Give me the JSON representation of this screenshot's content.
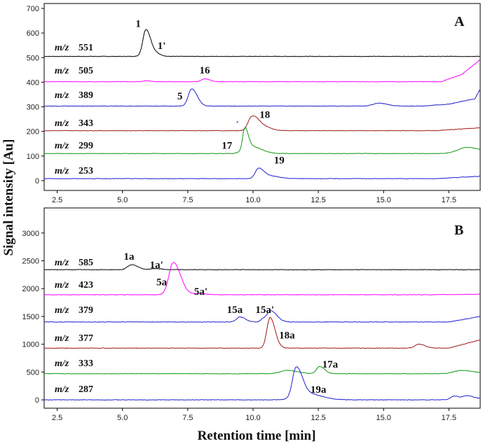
{
  "chart_data": {
    "type": "line",
    "xlabel": "Retention time  [min]",
    "ylabel": "Signal intensity  [Au]",
    "xlim": [
      2.0,
      18.7
    ],
    "x_ticks": [
      "2.5",
      "5.0",
      "7.5",
      "10.0",
      "12.5",
      "15.0",
      "17.5"
    ],
    "panels": [
      {
        "label": "A",
        "ylim": [
          -40,
          720
        ],
        "y_ticks": [
          "0",
          "100",
          "200",
          "300",
          "400",
          "500",
          "600",
          "700"
        ],
        "y_tick_values": [
          0,
          100,
          200,
          300,
          400,
          500,
          600,
          700
        ],
        "traces": [
          {
            "prefix": "m/z",
            "mass": "551",
            "color": "#000000",
            "baseline": 505,
            "drift": [
              [
                12,
                0
              ],
              [
                18.7,
                0
              ]
            ],
            "peaks": [
              [
                5.9,
                110,
                0.12
              ],
              [
                6.35,
                8,
                0.1
              ]
            ]
          },
          {
            "prefix": "m/z",
            "mass": "505",
            "color": "#ff00ff",
            "baseline": 402,
            "drift": [
              [
                17.2,
                0
              ],
              [
                18.0,
                30
              ],
              [
                18.7,
                90
              ]
            ],
            "peaks": [
              [
                8.15,
                12,
                0.12
              ],
              [
                5.9,
                4,
                0.1
              ]
            ]
          },
          {
            "prefix": "m/z",
            "mass": "389",
            "color": "#1f1fc8",
            "baseline": 303,
            "drift": [
              [
                16.5,
                0
              ],
              [
                17.5,
                8
              ],
              [
                18.5,
                30
              ],
              [
                18.7,
                70
              ]
            ],
            "peaks": [
              [
                7.65,
                70,
                0.13
              ],
              [
                14.8,
                12,
                0.2
              ]
            ]
          },
          {
            "prefix": "m/z",
            "mass": "343",
            "color": "#a01818",
            "baseline": 203,
            "drift": [
              [
                17.0,
                0
              ],
              [
                18.7,
                12
              ]
            ],
            "peaks": [
              [
                9.95,
                55,
                0.14
              ],
              [
                10.3,
                20,
                0.2
              ]
            ]
          },
          {
            "prefix": "m/z",
            "mass": "299",
            "color": "#119911",
            "baseline": 110,
            "drift": [
              [
                17.0,
                0
              ],
              [
                18.7,
                0
              ]
            ],
            "peaks": [
              [
                9.68,
                85,
                0.08
              ],
              [
                9.9,
                30,
                0.25
              ],
              [
                18.2,
                25,
                0.35
              ]
            ]
          },
          {
            "prefix": "m/z",
            "mass": "253",
            "color": "#2020d0",
            "baseline": 8,
            "drift": [
              [
                17.0,
                0
              ],
              [
                18.7,
                10
              ]
            ],
            "peaks": [
              [
                10.2,
                38,
                0.12
              ],
              [
                10.55,
                12,
                0.25
              ]
            ]
          }
        ],
        "peak_labels": [
          {
            "text": "1",
            "x": 5.6,
            "y": 625
          },
          {
            "text": "1'",
            "x": 6.5,
            "y": 535
          },
          {
            "text": "16",
            "x": 8.15,
            "y": 435
          },
          {
            "text": "5",
            "x": 7.2,
            "y": 330
          },
          {
            "text": "18",
            "x": 10.45,
            "y": 255
          },
          {
            "text": "17",
            "x": 9.0,
            "y": 130
          },
          {
            "text": "19",
            "x": 11.0,
            "y": 70
          }
        ]
      },
      {
        "label": "B",
        "ylim": [
          -150,
          3450
        ],
        "y_ticks": [
          "0",
          "500",
          "1000",
          "1500",
          "2000",
          "2500",
          "3000"
        ],
        "y_tick_values": [
          0,
          500,
          1000,
          1500,
          2000,
          2500,
          3000
        ],
        "traces": [
          {
            "prefix": "m/z",
            "mass": "585",
            "color": "#000000",
            "baseline": 2340,
            "drift": [
              [
                17.0,
                0
              ],
              [
                18.7,
                0
              ]
            ],
            "peaks": [
              [
                5.35,
                90,
                0.15
              ],
              [
                6.25,
                20,
                0.15
              ]
            ]
          },
          {
            "prefix": "m/z",
            "mass": "423",
            "color": "#ff00ff",
            "baseline": 1890,
            "drift": [
              [
                17.0,
                0
              ],
              [
                18.7,
                10
              ]
            ],
            "peaks": [
              [
                6.95,
                580,
                0.17
              ],
              [
                7.9,
                20,
                0.2
              ]
            ]
          },
          {
            "prefix": "m/z",
            "mass": "379",
            "color": "#2020c8",
            "baseline": 1400,
            "drift": [
              [
                17.5,
                0
              ],
              [
                18.7,
                100
              ]
            ],
            "peaks": [
              [
                9.5,
                90,
                0.13
              ],
              [
                10.4,
                60,
                0.1
              ],
              [
                10.7,
                190,
                0.14
              ]
            ]
          },
          {
            "prefix": "m/z",
            "mass": "377",
            "color": "#a01818",
            "baseline": 930,
            "drift": [
              [
                17.5,
                0
              ],
              [
                18.7,
                150
              ]
            ],
            "peaks": [
              [
                10.65,
                550,
                0.12
              ],
              [
                16.35,
                70,
                0.15
              ]
            ]
          },
          {
            "prefix": "m/z",
            "mass": "333",
            "color": "#119911",
            "baseline": 470,
            "drift": [
              [
                17.0,
                0
              ],
              [
                18.7,
                0
              ]
            ],
            "peaks": [
              [
                11.3,
                60,
                0.25
              ],
              [
                12.55,
                130,
                0.12
              ],
              [
                18.0,
                60,
                0.3
              ]
            ]
          },
          {
            "prefix": "m/z",
            "mass": "287",
            "color": "#2020d0",
            "baseline": 0,
            "drift": [
              [
                17.0,
                0
              ],
              [
                18.7,
                20
              ]
            ],
            "peaks": [
              [
                11.65,
                520,
                0.14
              ],
              [
                12.0,
                120,
                0.35
              ],
              [
                17.7,
                60,
                0.12
              ],
              [
                18.2,
                60,
                0.15
              ]
            ]
          }
        ],
        "peak_labels": [
          {
            "text": "1a",
            "x": 5.25,
            "y": 2520
          },
          {
            "text": "1a'",
            "x": 6.3,
            "y": 2370
          },
          {
            "text": "5a",
            "x": 6.5,
            "y": 2060
          },
          {
            "text": "5a'",
            "x": 8.0,
            "y": 1890
          },
          {
            "text": "15a",
            "x": 9.3,
            "y": 1560
          },
          {
            "text": "15a'",
            "x": 10.45,
            "y": 1560
          },
          {
            "text": "18a",
            "x": 11.3,
            "y": 1100
          },
          {
            "text": "17a",
            "x": 12.95,
            "y": 580
          },
          {
            "text": "19a",
            "x": 12.5,
            "y": 130
          }
        ]
      }
    ]
  }
}
